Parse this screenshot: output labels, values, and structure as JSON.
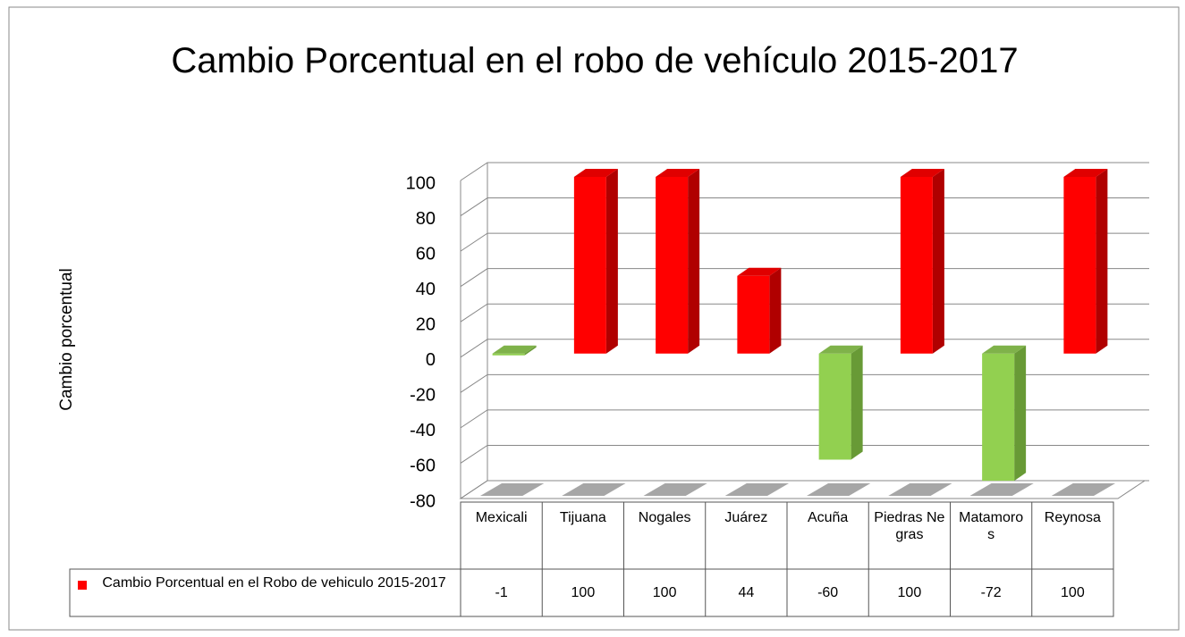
{
  "chart_data": {
    "type": "bar3d",
    "title": "Cambio Porcentual en el robo de vehículo 2015-2017",
    "y_axis_label": "Cambio porcentual",
    "categories": [
      "Mexicali",
      "Tijuana",
      "Nogales",
      "Juárez",
      "Acuña",
      "Piedras Negras",
      "Matamoros",
      "Reynosa"
    ],
    "series": [
      {
        "name": "Cambio Porcentual en el Robo de vehiculo 2015-2017",
        "color": "#ff0000",
        "negative_color": "#92d050",
        "values": [
          -1,
          100,
          100,
          44,
          -60,
          100,
          -72,
          100
        ]
      }
    ],
    "ylim": [
      -80,
      100
    ],
    "yticks": [
      -80,
      -60,
      -40,
      -20,
      0,
      20,
      40,
      60,
      80,
      100
    ],
    "grid": true,
    "data_table": true
  }
}
